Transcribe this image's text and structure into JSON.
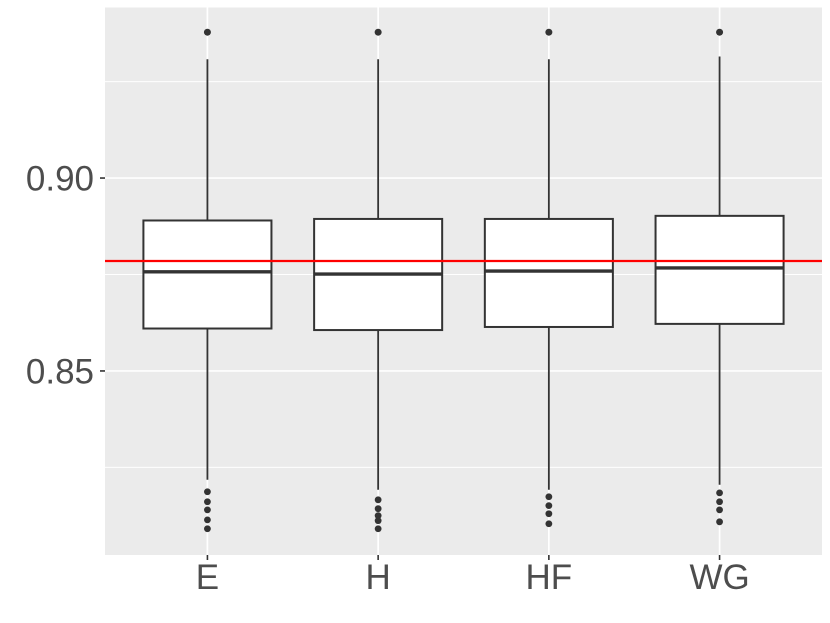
{
  "chart_data": {
    "type": "boxplot",
    "title": "",
    "xlabel": "",
    "ylabel": "",
    "categories": [
      "E",
      "H",
      "HF",
      "WG"
    ],
    "x_axis": {
      "tick_labels": [
        "E",
        "H",
        "HF",
        "WG"
      ]
    },
    "y_axis": {
      "tick_values": [
        0.9,
        0.85
      ],
      "tick_labels": [
        "0.90",
        "0.85"
      ],
      "minor_gridlines": [
        0.925,
        0.875,
        0.825
      ],
      "range": [
        0.8023,
        0.9442
      ],
      "grid": true
    },
    "boxes": [
      {
        "category": "E",
        "q1": 0.861,
        "median": 0.8757,
        "q3": 0.889,
        "whisker_low": 0.8218,
        "whisker_high": 0.9308,
        "outliers_high": [
          0.9378
        ],
        "outliers_low": [
          0.8187,
          0.8161,
          0.814,
          0.8114,
          0.8091
        ]
      },
      {
        "category": "H",
        "q1": 0.8606,
        "median": 0.8751,
        "q3": 0.8894,
        "whisker_low": 0.8192,
        "whisker_high": 0.9308,
        "outliers_high": [
          0.9378
        ],
        "outliers_low": [
          0.8166,
          0.8143,
          0.8125,
          0.8112,
          0.8091
        ]
      },
      {
        "category": "HF",
        "q1": 0.8614,
        "median": 0.8759,
        "q3": 0.8894,
        "whisker_low": 0.8192,
        "whisker_high": 0.9308,
        "outliers_high": [
          0.9378
        ],
        "outliers_low": [
          0.8174,
          0.8151,
          0.813,
          0.8104
        ]
      },
      {
        "category": "WG",
        "q1": 0.8622,
        "median": 0.8767,
        "q3": 0.8902,
        "whisker_low": 0.8205,
        "whisker_high": 0.9315,
        "outliers_high": [
          0.9378
        ],
        "outliers_low": [
          0.8184,
          0.8161,
          0.814,
          0.8109
        ]
      }
    ],
    "reference_line": {
      "orientation": "horizontal",
      "value": 0.8785,
      "color": "#FF0000"
    },
    "legend": "none",
    "style": {
      "panel_bg": "#EBEBEB",
      "grid_color": "#FFFFFF",
      "box_stroke": "#333333",
      "box_fill": "#FFFFFF",
      "outlier_color": "#333333",
      "axis_text_color": "#4D4D4D",
      "tick_color": "#333333"
    }
  }
}
